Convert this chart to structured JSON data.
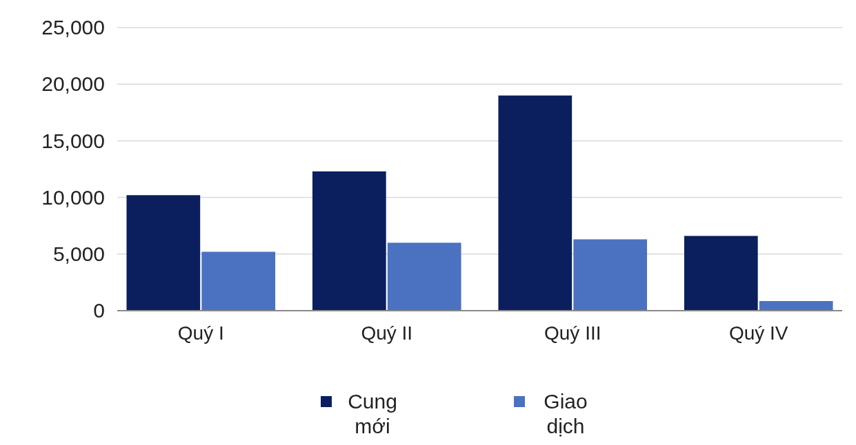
{
  "chart_data": {
    "type": "bar",
    "categories": [
      "Quý I",
      "Quý II",
      "Quý III",
      "Quý IV"
    ],
    "series": [
      {
        "name": "Cung mới",
        "color": "#0b1f5e",
        "values": [
          10200,
          12300,
          19000,
          6600
        ]
      },
      {
        "name": "Giao dịch",
        "color": "#4a72c0",
        "values": [
          5200,
          6000,
          6300,
          850
        ]
      }
    ],
    "ylim": [
      0,
      25000
    ],
    "yticks": [
      {
        "value": 0,
        "label": "0"
      },
      {
        "value": 5000,
        "label": "5,000"
      },
      {
        "value": 10000,
        "label": "10,000"
      },
      {
        "value": 15000,
        "label": "15,000"
      },
      {
        "value": 20000,
        "label": "20,000"
      },
      {
        "value": 25000,
        "label": "25,000"
      }
    ],
    "grid": "y",
    "legend": "bottom"
  }
}
